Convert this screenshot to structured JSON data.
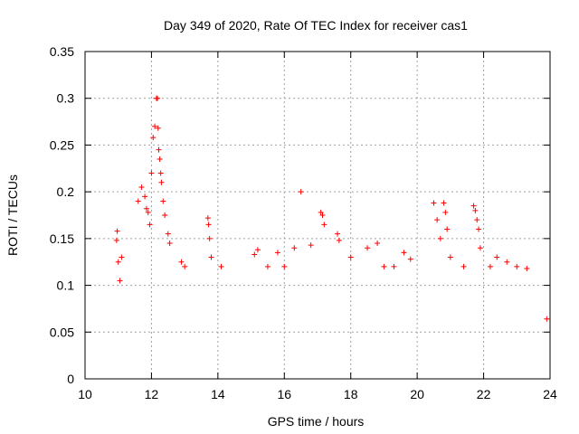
{
  "chart_data": {
    "type": "scatter",
    "title": "Day 349 of 2020, Rate Of TEC Index for receiver cas1",
    "xlabel": "GPS time / hours",
    "ylabel": "ROTI / TECUs",
    "xlim": [
      10,
      24
    ],
    "ylim": [
      0,
      0.35
    ],
    "xticks": [
      10,
      12,
      14,
      16,
      18,
      20,
      22,
      24
    ],
    "xtick_labels": [
      "10",
      "12",
      "14",
      "16",
      "18",
      "20",
      "22",
      "24"
    ],
    "yticks": [
      0,
      0.05,
      0.1,
      0.15,
      0.2,
      0.25,
      0.3,
      0.35
    ],
    "ytick_labels": [
      "0",
      "0.05",
      "0.1",
      "0.15",
      "0.2",
      "0.25",
      "0.3",
      "0.35"
    ],
    "grid": true,
    "marker": "+",
    "color": "#ff0000",
    "series": [
      {
        "name": "ROTI",
        "points": [
          [
            10.95,
            0.148
          ],
          [
            10.97,
            0.158
          ],
          [
            11.0,
            0.125
          ],
          [
            11.05,
            0.105
          ],
          [
            11.1,
            0.13
          ],
          [
            11.6,
            0.19
          ],
          [
            11.7,
            0.205
          ],
          [
            11.8,
            0.195
          ],
          [
            11.85,
            0.182
          ],
          [
            11.9,
            0.178
          ],
          [
            11.95,
            0.165
          ],
          [
            12.0,
            0.22
          ],
          [
            12.05,
            0.258
          ],
          [
            12.1,
            0.27
          ],
          [
            12.15,
            0.3
          ],
          [
            12.18,
            0.3
          ],
          [
            12.2,
            0.268
          ],
          [
            12.22,
            0.245
          ],
          [
            12.25,
            0.235
          ],
          [
            12.28,
            0.22
          ],
          [
            12.3,
            0.21
          ],
          [
            12.35,
            0.19
          ],
          [
            12.4,
            0.175
          ],
          [
            12.5,
            0.155
          ],
          [
            12.55,
            0.145
          ],
          [
            12.9,
            0.125
          ],
          [
            13.0,
            0.12
          ],
          [
            13.7,
            0.172
          ],
          [
            13.72,
            0.165
          ],
          [
            13.75,
            0.15
          ],
          [
            13.8,
            0.13
          ],
          [
            14.1,
            0.12
          ],
          [
            15.1,
            0.133
          ],
          [
            15.2,
            0.138
          ],
          [
            15.5,
            0.12
          ],
          [
            15.8,
            0.135
          ],
          [
            16.0,
            0.12
          ],
          [
            16.3,
            0.14
          ],
          [
            16.5,
            0.2
          ],
          [
            16.8,
            0.143
          ],
          [
            17.1,
            0.178
          ],
          [
            17.15,
            0.175
          ],
          [
            17.2,
            0.165
          ],
          [
            17.6,
            0.155
          ],
          [
            17.65,
            0.148
          ],
          [
            18.0,
            0.13
          ],
          [
            18.5,
            0.14
          ],
          [
            18.8,
            0.145
          ],
          [
            19.0,
            0.12
          ],
          [
            19.3,
            0.12
          ],
          [
            19.6,
            0.135
          ],
          [
            19.8,
            0.128
          ],
          [
            20.5,
            0.188
          ],
          [
            20.6,
            0.17
          ],
          [
            20.7,
            0.15
          ],
          [
            20.8,
            0.188
          ],
          [
            20.85,
            0.178
          ],
          [
            20.9,
            0.16
          ],
          [
            21.0,
            0.13
          ],
          [
            21.4,
            0.12
          ],
          [
            21.7,
            0.185
          ],
          [
            21.75,
            0.18
          ],
          [
            21.8,
            0.17
          ],
          [
            21.85,
            0.16
          ],
          [
            21.9,
            0.14
          ],
          [
            22.2,
            0.12
          ],
          [
            22.4,
            0.13
          ],
          [
            22.7,
            0.125
          ],
          [
            23.0,
            0.12
          ],
          [
            23.3,
            0.118
          ],
          [
            23.9,
            0.064
          ]
        ]
      }
    ]
  }
}
